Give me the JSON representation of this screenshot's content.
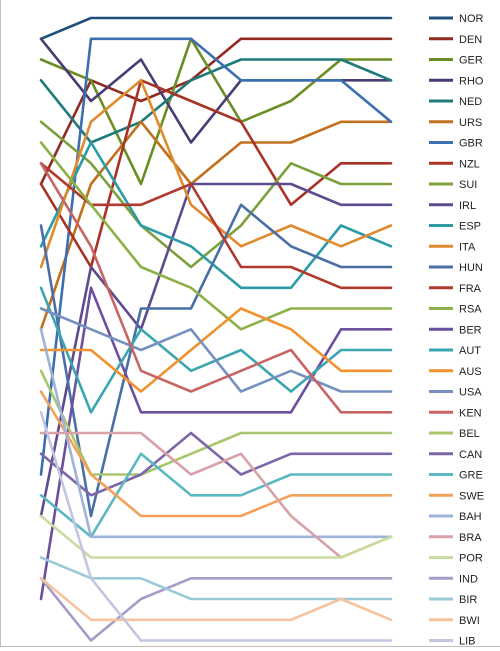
{
  "chart_data": {
    "type": "line",
    "title": "",
    "xlabel": "",
    "ylabel": "",
    "x": [
      1,
      2,
      3,
      4,
      5,
      6,
      7,
      8,
      9
    ],
    "ylim": [
      1,
      31
    ],
    "y_reversed": true,
    "grid": false,
    "legend_position": "right",
    "series": [
      {
        "name": "NOR",
        "color": "#1F4E79",
        "values": [
          1,
          0,
          0,
          0,
          0,
          0,
          0,
          0,
          0
        ]
      },
      {
        "name": "DEN",
        "color": "#922B21",
        "values": [
          8,
          3,
          4,
          3,
          1,
          1,
          1,
          1,
          1
        ]
      },
      {
        "name": "GER",
        "color": "#6B8E23",
        "values": [
          2,
          3,
          8,
          1,
          5,
          4,
          2,
          2,
          2
        ]
      },
      {
        "name": "RHO",
        "color": "#4B3A74",
        "values": [
          1,
          4,
          2,
          6,
          3,
          3,
          3,
          3,
          3
        ]
      },
      {
        "name": "NED",
        "color": "#1F7A7A",
        "values": [
          3,
          6,
          5,
          3,
          2,
          2,
          2,
          3,
          4
        ]
      },
      {
        "name": "URS",
        "color": "#C0701E",
        "values": [
          15,
          8,
          5,
          8,
          6,
          6,
          5,
          5,
          5
        ]
      },
      {
        "name": "GBR",
        "color": "#3C6FB0",
        "values": [
          22,
          1,
          1,
          1,
          3,
          3,
          3,
          5,
          6
        ]
      },
      {
        "name": "NZL",
        "color": "#A93226",
        "values": [
          8,
          12,
          3,
          4,
          5,
          9,
          7,
          7,
          7
        ]
      },
      {
        "name": "SUI",
        "color": "#7CA03E",
        "values": [
          5,
          7,
          10,
          12,
          10,
          7,
          8,
          8,
          8
        ]
      },
      {
        "name": "IRL",
        "color": "#5E4A8E",
        "values": [
          24,
          12,
          15,
          8,
          8,
          8,
          9,
          9,
          9
        ]
      },
      {
        "name": "ESP",
        "color": "#2C9BA6",
        "values": [
          11,
          6,
          10,
          11,
          13,
          13,
          10,
          11,
          11
        ]
      },
      {
        "name": "ITA",
        "color": "#E08A2E",
        "values": [
          12,
          5,
          3,
          9,
          11,
          10,
          11,
          10,
          10
        ]
      },
      {
        "name": "HUN",
        "color": "#4A6FA5",
        "values": [
          10,
          24,
          14,
          14,
          9,
          11,
          12,
          12,
          12
        ]
      },
      {
        "name": "FRA",
        "color": "#B03A2E",
        "values": [
          7,
          9,
          9,
          8,
          12,
          12,
          13,
          13,
          13
        ]
      },
      {
        "name": "RSA",
        "color": "#8DB048",
        "values": [
          6,
          9,
          12,
          13,
          15,
          14,
          14,
          14,
          14
        ]
      },
      {
        "name": "BER",
        "color": "#6C4F9E",
        "values": [
          28,
          13,
          19,
          19,
          19,
          19,
          15,
          15,
          15
        ]
      },
      {
        "name": "AUT",
        "color": "#3AA6B0",
        "values": [
          13,
          19,
          15,
          17,
          16,
          18,
          16,
          16,
          16
        ]
      },
      {
        "name": "AUS",
        "color": "#F0922F",
        "values": [
          16,
          16,
          18,
          16,
          14,
          15,
          17,
          17,
          17
        ]
      },
      {
        "name": "USA",
        "color": "#7690C0",
        "values": [
          14,
          15,
          16,
          15,
          18,
          17,
          18,
          18,
          18
        ]
      },
      {
        "name": "KEN",
        "color": "#C86464",
        "values": [
          7,
          11,
          17,
          18,
          17,
          16,
          19,
          19,
          19
        ]
      },
      {
        "name": "BEL",
        "color": "#A8C66C",
        "values": [
          17,
          22,
          22,
          21,
          20,
          20,
          20,
          20,
          20
        ]
      },
      {
        "name": "CAN",
        "color": "#7D66A8",
        "values": [
          21,
          23,
          22,
          20,
          22,
          21,
          21,
          21,
          21
        ]
      },
      {
        "name": "GRE",
        "color": "#5BB8C2",
        "values": [
          23,
          25,
          21,
          23,
          23,
          22,
          22,
          22,
          22
        ]
      },
      {
        "name": "SWE",
        "color": "#F2A15A",
        "values": [
          18,
          22,
          24,
          24,
          24,
          23,
          23,
          23,
          23
        ]
      },
      {
        "name": "BAH",
        "color": "#9FB3D8",
        "values": [
          15,
          25,
          25,
          25,
          25,
          25,
          25,
          25,
          24
        ]
      },
      {
        "name": "BRA",
        "color": "#D9A0A8",
        "values": [
          20,
          20,
          20,
          22,
          21,
          24,
          26,
          25,
          25
        ]
      },
      {
        "name": "POR",
        "color": "#C8DBA0",
        "values": [
          24,
          26,
          26,
          26,
          26,
          26,
          26,
          25,
          26
        ]
      },
      {
        "name": "IND",
        "color": "#A79BC8",
        "values": [
          27,
          30,
          28,
          27,
          27,
          27,
          27,
          27,
          27
        ]
      },
      {
        "name": "BIR",
        "color": "#9CCAD8",
        "values": [
          26,
          27,
          27,
          28,
          28,
          28,
          28,
          28,
          28
        ]
      },
      {
        "name": "BWI",
        "color": "#F7C39E",
        "values": [
          27,
          29,
          29,
          29,
          29,
          29,
          28,
          29,
          29
        ]
      },
      {
        "name": "LIB",
        "color": "#C2C6E0",
        "values": [
          19,
          27,
          30,
          30,
          30,
          30,
          30,
          30,
          30
        ]
      }
    ]
  }
}
